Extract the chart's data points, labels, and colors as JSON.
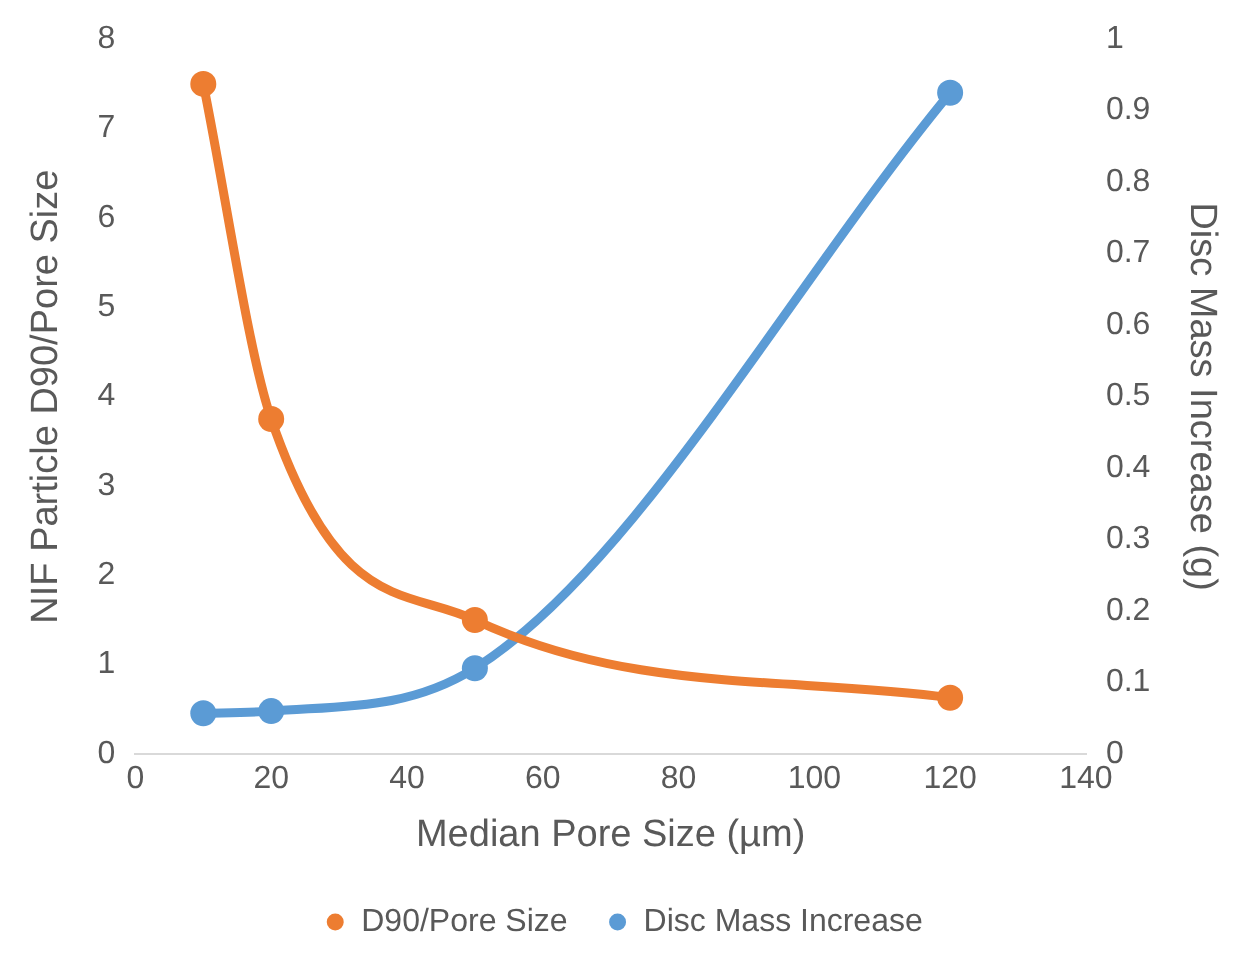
{
  "chart_data": {
    "type": "line",
    "xlabel": "Median Pore Size (µm)",
    "ylabel": "NIF Particle D90/Pore Size",
    "y2label": "Disc Mass Increase (g)",
    "x": [
      10,
      20,
      50,
      120
    ],
    "series": [
      {
        "name": "D90/Pore Size",
        "color": "#ed7d31",
        "values": [
          7.5,
          3.75,
          1.5,
          0.63
        ]
      },
      {
        "name": "Disc Mass Increase",
        "color": "#5b9bd5",
        "axis": "y2",
        "values": [
          0.057,
          0.06,
          0.12,
          0.925
        ]
      }
    ],
    "xlim": [
      0,
      140
    ],
    "xticks": [
      0,
      20,
      40,
      60,
      80,
      100,
      120,
      140
    ],
    "ylim": [
      0,
      8
    ],
    "yticks": [
      0,
      1,
      2,
      3,
      4,
      5,
      6,
      7,
      8
    ],
    "y2lim": [
      0,
      1
    ],
    "y2ticks": [
      0,
      0.1,
      0.2,
      0.3,
      0.4,
      0.5,
      0.6,
      0.7,
      0.8,
      0.9,
      1
    ],
    "grid": false,
    "legend": "bottom",
    "marker": "circle"
  }
}
